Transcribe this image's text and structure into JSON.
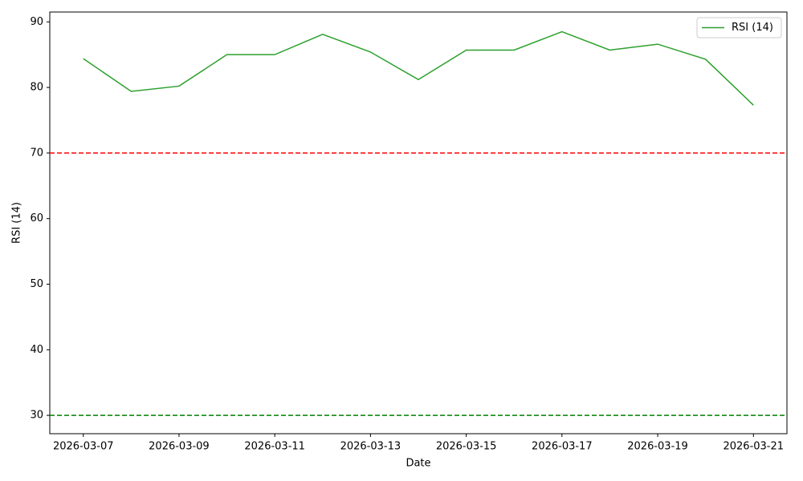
{
  "chart_data": {
    "type": "line",
    "x": [
      "2026-03-07",
      "2026-03-08",
      "2026-03-09",
      "2026-03-10",
      "2026-03-11",
      "2026-03-12",
      "2026-03-13",
      "2026-03-14",
      "2026-03-15",
      "2026-03-16",
      "2026-03-17",
      "2026-03-18",
      "2026-03-19",
      "2026-03-20",
      "2026-03-21"
    ],
    "series": [
      {
        "name": "RSI (14)",
        "color": "#2ca02c",
        "values": [
          84.4,
          79.4,
          80.2,
          85.0,
          85.0,
          88.1,
          85.4,
          81.2,
          85.7,
          85.7,
          88.5,
          85.7,
          86.6,
          84.3,
          77.3
        ]
      }
    ],
    "reference_lines": [
      {
        "value": 70,
        "color": "#ff0000"
      },
      {
        "value": 30,
        "color": "#008000"
      }
    ],
    "xlabel": "Date",
    "ylabel": "RSI (14)",
    "xlim": [
      "2026-03-06T07:12",
      "2026-03-21T16:48"
    ],
    "xticks": [
      "2026-03-07",
      "2026-03-09",
      "2026-03-11",
      "2026-03-13",
      "2026-03-15",
      "2026-03-17",
      "2026-03-19",
      "2026-03-21"
    ],
    "ylim": [
      27.2,
      91.5
    ],
    "yticks": [
      30,
      40,
      50,
      60,
      70,
      80,
      90
    ],
    "legend": "upper right",
    "grid": false
  }
}
